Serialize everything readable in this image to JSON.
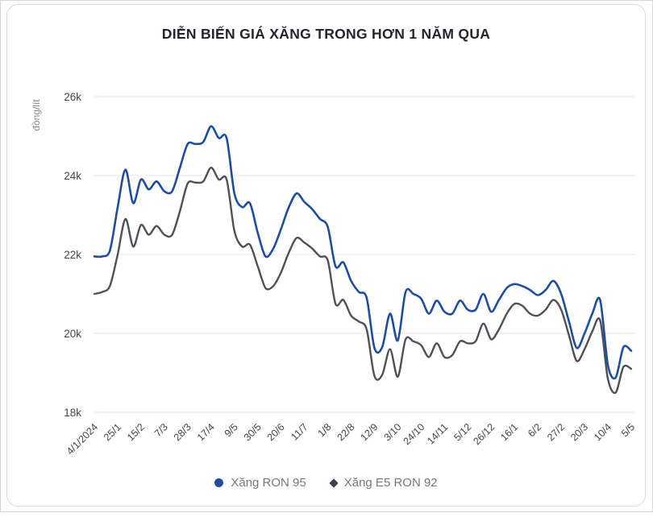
{
  "title": "DIỄN BIẾN GIÁ XĂNG TRONG HƠN 1 NĂM QUA",
  "chart_data": {
    "type": "line",
    "title": "DIỄN BIẾN GIÁ XĂNG TRONG HƠN 1 NĂM QUA",
    "xlabel": "",
    "ylabel": "đồng/lít",
    "ylim": [
      18000,
      26000
    ],
    "grid": "horizontal",
    "legend_position": "bottom",
    "yticks": [
      {
        "value": 18000,
        "label": "18k"
      },
      {
        "value": 20000,
        "label": "20k"
      },
      {
        "value": 22000,
        "label": "22k"
      },
      {
        "value": 24000,
        "label": "24k"
      },
      {
        "value": 26000,
        "label": "26k"
      }
    ],
    "x_labels": [
      "4/1/2024",
      "25/1",
      "15/2",
      "7/3",
      "28/3",
      "17/4",
      "9/5",
      "30/5",
      "20/6",
      "11/7",
      "1/8",
      "22/8",
      "12/9",
      "3/10",
      "24/10",
      "14/11",
      "5/12",
      "26/12",
      "16/1",
      "6/2",
      "27/2",
      "20/3",
      "10/4",
      "5/5"
    ],
    "points_per_label": 3,
    "series": [
      {
        "name": "Xăng RON 95",
        "color": "#1d4da1",
        "marker": "circle",
        "values": [
          21950,
          21950,
          22100,
          23200,
          24150,
          23300,
          23900,
          23650,
          23850,
          23600,
          23600,
          24200,
          24800,
          24800,
          24850,
          25250,
          24950,
          24950,
          23550,
          23200,
          23300,
          22550,
          21950,
          22150,
          22650,
          23200,
          23550,
          23330,
          23150,
          22900,
          22700,
          21700,
          21800,
          21330,
          21050,
          20900,
          19630,
          19650,
          20500,
          19820,
          21050,
          21000,
          20880,
          20500,
          20830,
          20550,
          20500,
          20830,
          20600,
          20600,
          21000,
          20550,
          20850,
          21150,
          21250,
          21200,
          21100,
          20970,
          21100,
          21330,
          21000,
          20300,
          19630,
          20000,
          20500,
          20850,
          19200,
          18880,
          19650,
          19560
        ]
      },
      {
        "name": "Xăng E5 RON 92",
        "color": "#4e5058",
        "marker": "diamond",
        "values": [
          21000,
          21050,
          21200,
          22000,
          22900,
          22200,
          22750,
          22500,
          22720,
          22500,
          22500,
          23100,
          23800,
          23820,
          23850,
          24200,
          23900,
          23900,
          22600,
          22200,
          22250,
          21700,
          21150,
          21200,
          21550,
          22050,
          22420,
          22300,
          22150,
          21950,
          21850,
          20750,
          20850,
          20450,
          20300,
          20100,
          18920,
          18950,
          19600,
          18900,
          19850,
          19800,
          19700,
          19400,
          19750,
          19400,
          19450,
          19800,
          19750,
          19800,
          20250,
          19850,
          20100,
          20500,
          20750,
          20700,
          20500,
          20450,
          20600,
          20850,
          20600,
          19950,
          19300,
          19600,
          20050,
          20330,
          18850,
          18500,
          19150,
          19100
        ]
      }
    ]
  }
}
